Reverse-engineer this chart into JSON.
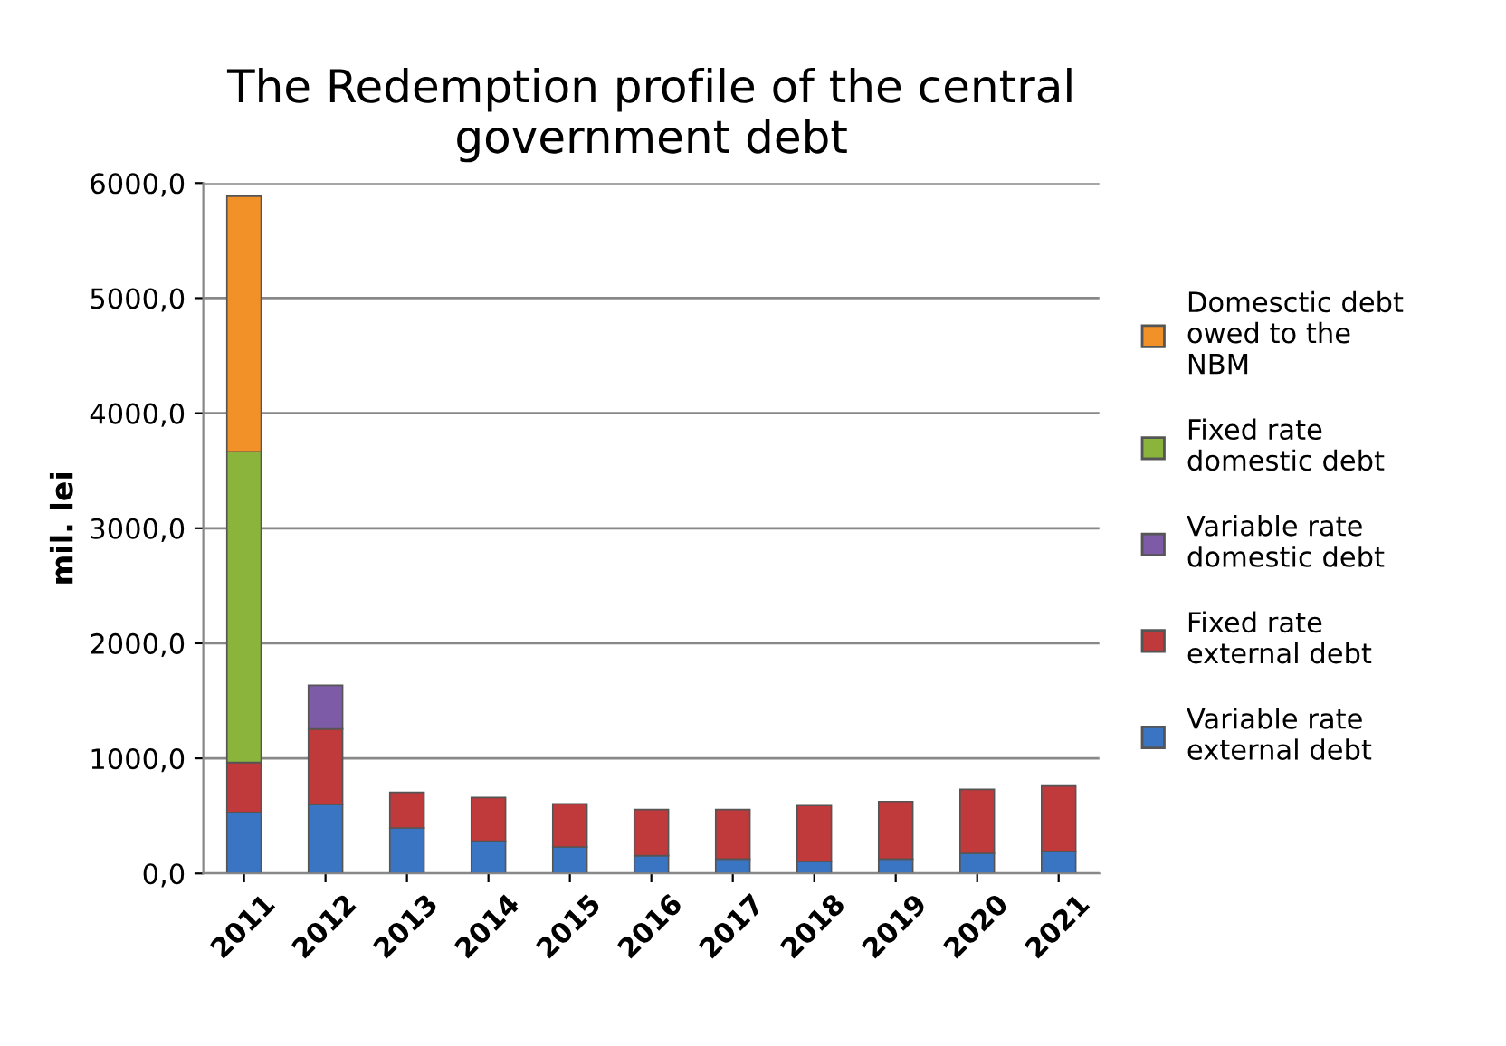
{
  "chart_data": {
    "type": "bar",
    "stacked": true,
    "title": "The Redemption profile of the central\ngovernment debt",
    "ylabel": "mil. lei",
    "categories": [
      "2011",
      "2012",
      "2013",
      "2014",
      "2015",
      "2016",
      "2017",
      "2018",
      "2019",
      "2020",
      "2021"
    ],
    "series": [
      {
        "name": "Variable rate\nexternal debt",
        "color": "#3a75c4",
        "values": [
          530,
          600,
          395,
          280,
          230,
          155,
          125,
          105,
          125,
          175,
          190
        ]
      },
      {
        "name": "Fixed rate\nexternal debt",
        "color": "#c0393b",
        "values": [
          435,
          655,
          310,
          380,
          375,
          400,
          430,
          485,
          500,
          555,
          570
        ]
      },
      {
        "name": "Variable rate\ndomestic debt",
        "color": "#7d5ba6",
        "values": [
          null,
          380,
          null,
          null,
          null,
          null,
          null,
          null,
          null,
          null,
          null
        ]
      },
      {
        "name": "Fixed rate\ndomestic debt",
        "color": "#8ab43c",
        "values": [
          2700,
          null,
          null,
          null,
          null,
          null,
          null,
          null,
          null,
          null,
          null
        ]
      },
      {
        "name": "Domesctic debt\nowed to the\nNBM",
        "color": "#f39129",
        "values": [
          2220,
          null,
          null,
          null,
          null,
          null,
          null,
          null,
          null,
          null,
          null
        ]
      }
    ],
    "ylim": [
      0,
      6000
    ],
    "yticks": [
      {
        "value": 0,
        "label": "0,0"
      },
      {
        "value": 1000,
        "label": "1000,0"
      },
      {
        "value": 2000,
        "label": "2000,0"
      },
      {
        "value": 3000,
        "label": "3000,0"
      },
      {
        "value": 4000,
        "label": "4000,0"
      },
      {
        "value": 5000,
        "label": "5000,0"
      },
      {
        "value": 6000,
        "label": "6000,0"
      }
    ],
    "grid": "y",
    "legend": "right"
  }
}
